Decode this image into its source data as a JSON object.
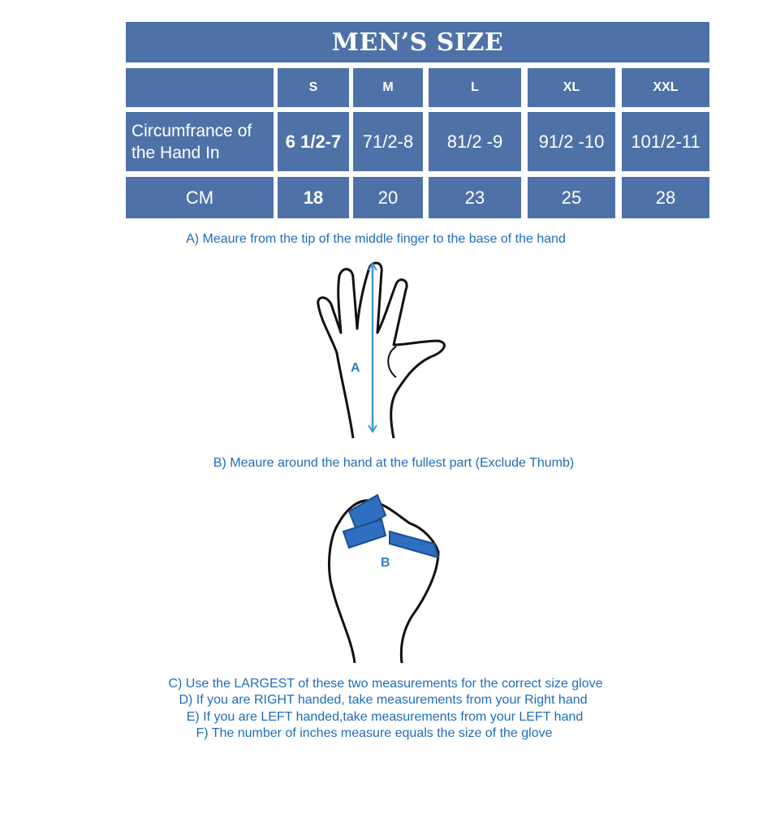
{
  "title": "MEN’S SIZE",
  "sizes": [
    "S",
    "M",
    "L",
    "XL",
    "XXL"
  ],
  "rows": [
    {
      "label": "Circumfrance of the Hand In",
      "values": [
        "6 1/2-7",
        "71/2-8",
        "81/2 -9",
        "91/2 -10",
        "101/2-11"
      ]
    },
    {
      "label": "CM",
      "values": [
        "18",
        "20",
        "23",
        "25",
        "28"
      ]
    }
  ],
  "instructions": {
    "a": "A) Meaure from the tip of the middle finger to the base of the hand",
    "b": "B) Meaure around the hand at the fullest part (Exclude Thumb)",
    "c": "C) Use the LARGEST of these two measurements for the correct size glove",
    "d": "D) If you are RIGHT handed, take measurements from your Right hand",
    "e": "E) If you are LEFT handed,take measurements from your LEFT hand",
    "f": "F) The number of inches measure equals the size of the glove"
  },
  "figures": {
    "a_label": "A",
    "b_label": "B"
  },
  "colors": {
    "table": "#4e72a8",
    "text": "#1f6db8"
  }
}
